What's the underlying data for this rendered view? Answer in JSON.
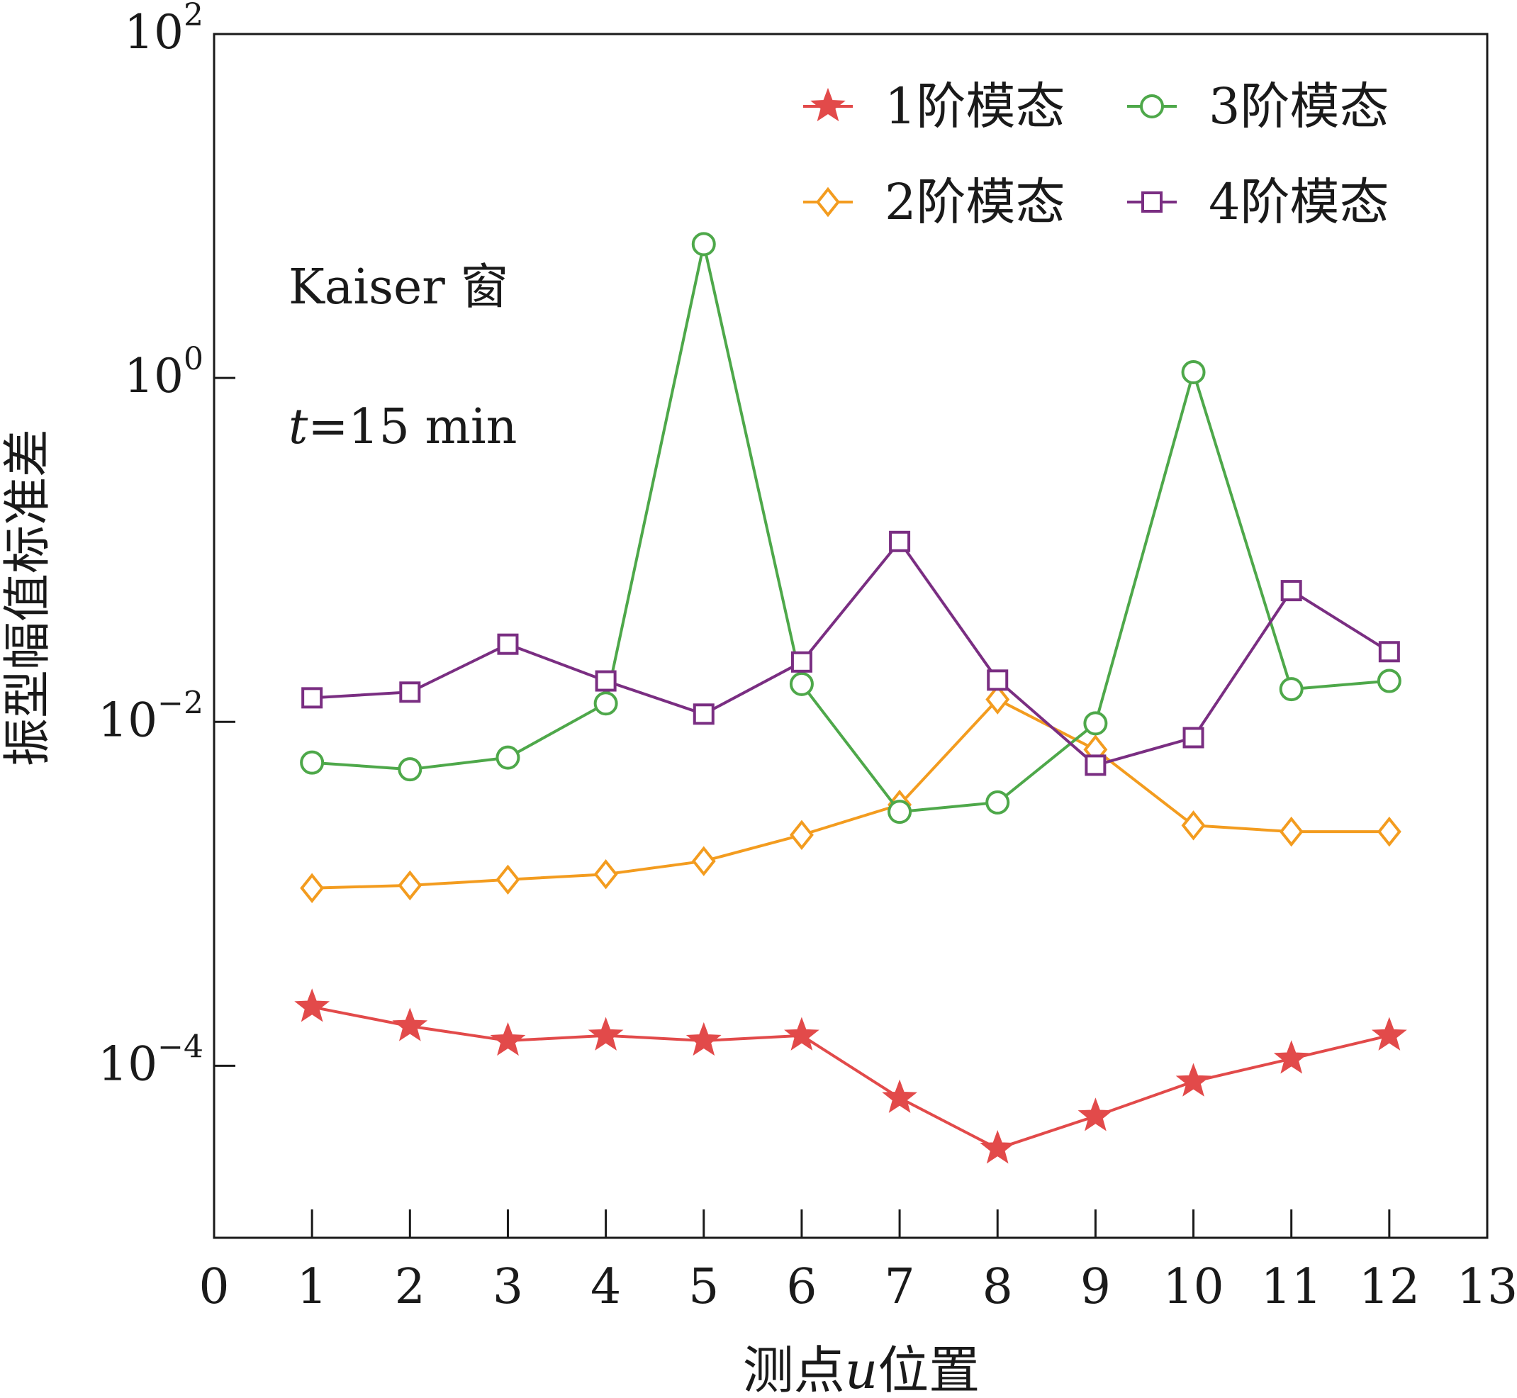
{
  "chart_data": {
    "type": "line",
    "title": "",
    "xlabel_parts": [
      "测点",
      "u",
      "位置"
    ],
    "ylabel": "振型幅值标准差",
    "y_scale": "log",
    "xlim": [
      0,
      13
    ],
    "ylim_exponent": [
      -5,
      2
    ],
    "x_ticks": [
      0,
      1,
      2,
      3,
      4,
      5,
      6,
      7,
      8,
      9,
      10,
      11,
      12,
      13
    ],
    "y_tick_exponents": [
      -4,
      -2,
      0,
      2
    ],
    "y_tick_base": "10",
    "grid": false,
    "legend_position": "top-right",
    "annotations": {
      "window": "Kaiser 窗",
      "time_var": "t",
      "time_value": "=15 min"
    },
    "x": [
      1,
      2,
      3,
      4,
      5,
      6,
      7,
      8,
      9,
      10,
      11,
      12
    ],
    "series": [
      {
        "name": "1阶模态",
        "color": "#e24a4a",
        "marker": "star",
        "values": [
          0.00022,
          0.00017,
          0.00014,
          0.00015,
          0.00014,
          0.00015,
          6.5e-05,
          3.3e-05,
          5.1e-05,
          8.1e-05,
          0.00011,
          0.00015
        ]
      },
      {
        "name": "2阶模态",
        "color": "#f39c1f",
        "marker": "diamond",
        "values": [
          0.00108,
          0.00112,
          0.00121,
          0.0013,
          0.00155,
          0.0022,
          0.0033,
          0.0135,
          0.0069,
          0.0025,
          0.0023,
          0.0023
        ]
      },
      {
        "name": "3阶模态",
        "color": "#4ea84a",
        "marker": "circle",
        "values": [
          0.0058,
          0.0053,
          0.0062,
          0.0128,
          6.0,
          0.0166,
          0.003,
          0.0034,
          0.0098,
          1.08,
          0.0155,
          0.0173
        ]
      },
      {
        "name": "4阶模态",
        "color": "#7a2e82",
        "marker": "square",
        "values": [
          0.0138,
          0.0149,
          0.0283,
          0.0173,
          0.0111,
          0.0223,
          0.112,
          0.0175,
          0.0056,
          0.0081,
          0.058,
          0.0256
        ]
      }
    ]
  }
}
